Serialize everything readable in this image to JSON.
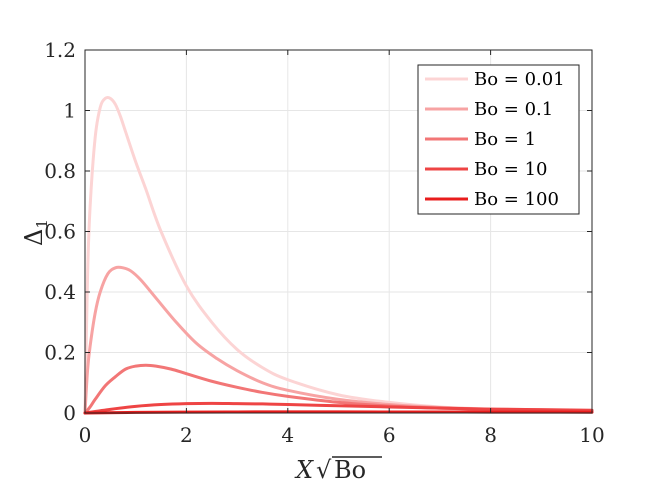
{
  "chart_data": {
    "type": "line",
    "title": "",
    "xlabel": "X√Bo",
    "xlabel_parts": {
      "var": "X",
      "sqrt": "√",
      "arg": "Bo"
    },
    "ylabel": "Δ1",
    "ylabel_parts": {
      "main": "Δ",
      "sub": "1"
    },
    "xlim": [
      0,
      10
    ],
    "ylim": [
      0,
      1.2
    ],
    "xticks": [
      0,
      2,
      4,
      6,
      8,
      10
    ],
    "xtick_labels": [
      "0",
      "2",
      "4",
      "6",
      "8",
      "10"
    ],
    "yticks": [
      0,
      0.2,
      0.4,
      0.6,
      0.8,
      1,
      1.2
    ],
    "ytick_labels": [
      "0",
      "0.2",
      "0.4",
      "0.6",
      "0.8",
      "1",
      "1.2"
    ],
    "grid": true,
    "legend_position": "top-right",
    "series": [
      {
        "name": "Bo = 0.01",
        "color": "#fcd4d4",
        "x": [
          0,
          0.05,
          0.1,
          0.2,
          0.3,
          0.4,
          0.5,
          0.6,
          0.7,
          0.8,
          1.0,
          1.2,
          1.5,
          2.0,
          2.5,
          3.0,
          3.5,
          4.0,
          5.0,
          6.0,
          7.0,
          8.0,
          9.0,
          10.0
        ],
        "values": [
          0,
          0.45,
          0.68,
          0.91,
          1.01,
          1.04,
          1.04,
          1.02,
          0.98,
          0.93,
          0.83,
          0.74,
          0.6,
          0.42,
          0.3,
          0.21,
          0.15,
          0.11,
          0.06,
          0.035,
          0.02,
          0.013,
          0.009,
          0.006
        ]
      },
      {
        "name": "Bo = 0.1",
        "color": "#f7a3a3",
        "x": [
          0,
          0.05,
          0.1,
          0.2,
          0.3,
          0.45,
          0.6,
          0.75,
          0.9,
          1.1,
          1.4,
          1.8,
          2.2,
          2.6,
          3.0,
          3.5,
          4.0,
          5.0,
          6.0,
          7.0,
          8.0,
          9.0,
          10.0
        ],
        "values": [
          0,
          0.14,
          0.22,
          0.33,
          0.4,
          0.46,
          0.48,
          0.48,
          0.47,
          0.44,
          0.38,
          0.3,
          0.23,
          0.18,
          0.14,
          0.1,
          0.075,
          0.045,
          0.028,
          0.018,
          0.012,
          0.008,
          0.006
        ]
      },
      {
        "name": "Bo = 1",
        "color": "#f27676",
        "x": [
          0,
          0.1,
          0.2,
          0.4,
          0.6,
          0.8,
          1.0,
          1.2,
          1.4,
          1.7,
          2.0,
          2.5,
          3.0,
          3.5,
          4.0,
          5.0,
          6.0,
          7.0,
          8.0,
          9.0,
          10.0
        ],
        "values": [
          0,
          0.02,
          0.045,
          0.09,
          0.12,
          0.145,
          0.155,
          0.158,
          0.155,
          0.145,
          0.13,
          0.105,
          0.085,
          0.068,
          0.055,
          0.035,
          0.023,
          0.016,
          0.012,
          0.009,
          0.007
        ]
      },
      {
        "name": "Bo = 10",
        "color": "#ee4444",
        "x": [
          0,
          0.5,
          1.0,
          1.5,
          2.0,
          2.5,
          3.0,
          3.5,
          4.0,
          5.0,
          6.0,
          7.0,
          8.0,
          9.0,
          10.0
        ],
        "values": [
          0,
          0.012,
          0.022,
          0.028,
          0.031,
          0.032,
          0.031,
          0.03,
          0.028,
          0.024,
          0.02,
          0.016,
          0.013,
          0.011,
          0.009
        ]
      },
      {
        "name": "Bo = 100",
        "color": "#e81c1c",
        "x": [
          0,
          1,
          2,
          3,
          4,
          5,
          6,
          7,
          8,
          9,
          10
        ],
        "values": [
          0,
          0.002,
          0.003,
          0.0035,
          0.0037,
          0.0036,
          0.0034,
          0.0032,
          0.003,
          0.0028,
          0.0026
        ]
      }
    ]
  }
}
